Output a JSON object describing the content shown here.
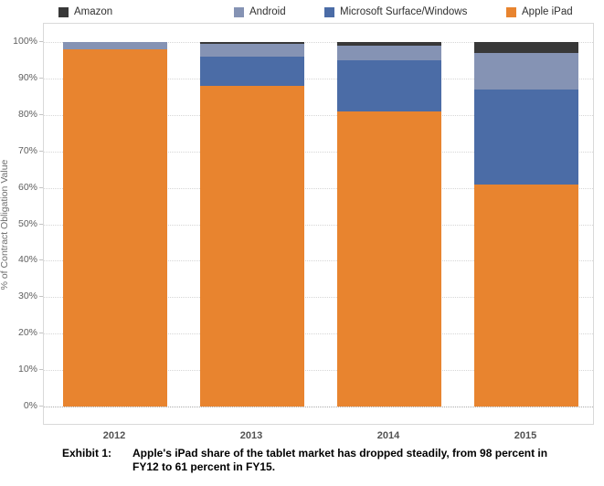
{
  "legend": {
    "items": [
      {
        "label": "Amazon",
        "color": "#383838"
      },
      {
        "label": "Android",
        "color": "#8593b4"
      },
      {
        "label": "Microsoft Surface/Windows",
        "color": "#4b6ca6"
      },
      {
        "label": "Apple iPad",
        "color": "#e8842f"
      }
    ]
  },
  "y_axis": {
    "title": "% of Contract Obligation Value",
    "tick_labels": [
      "0%",
      "10%",
      "20%",
      "30%",
      "40%",
      "50%",
      "60%",
      "70%",
      "80%",
      "90%",
      "100%"
    ]
  },
  "chart_data": {
    "type": "bar",
    "stacked": true,
    "stack_order_top_to_bottom": [
      "Amazon",
      "Android",
      "Microsoft Surface/Windows",
      "Apple iPad"
    ],
    "categories": [
      "2012",
      "2013",
      "2014",
      "2015"
    ],
    "series": [
      {
        "name": "Amazon",
        "color": "#383838",
        "values": [
          0,
          0.5,
          1,
          3
        ]
      },
      {
        "name": "Android",
        "color": "#8593b4",
        "values": [
          2,
          3.5,
          4,
          10
        ]
      },
      {
        "name": "Microsoft Surface/Windows",
        "color": "#4b6ca6",
        "values": [
          0,
          8,
          14,
          26
        ]
      },
      {
        "name": "Apple iPad",
        "color": "#e8842f",
        "values": [
          98,
          88,
          81,
          61
        ]
      }
    ],
    "title": "",
    "xlabel": "",
    "ylabel": "% of Contract Obligation Value",
    "ylim": [
      0,
      100
    ],
    "y_tick_step": 10,
    "grid": "horizontal-dotted",
    "legend_position": "top"
  },
  "caption": {
    "exhibit_label": "Exhibit 1:",
    "text": "Apple's iPad share of the tablet market has dropped steadily, from 98 percent in FY12 to 61 percent in FY15."
  }
}
